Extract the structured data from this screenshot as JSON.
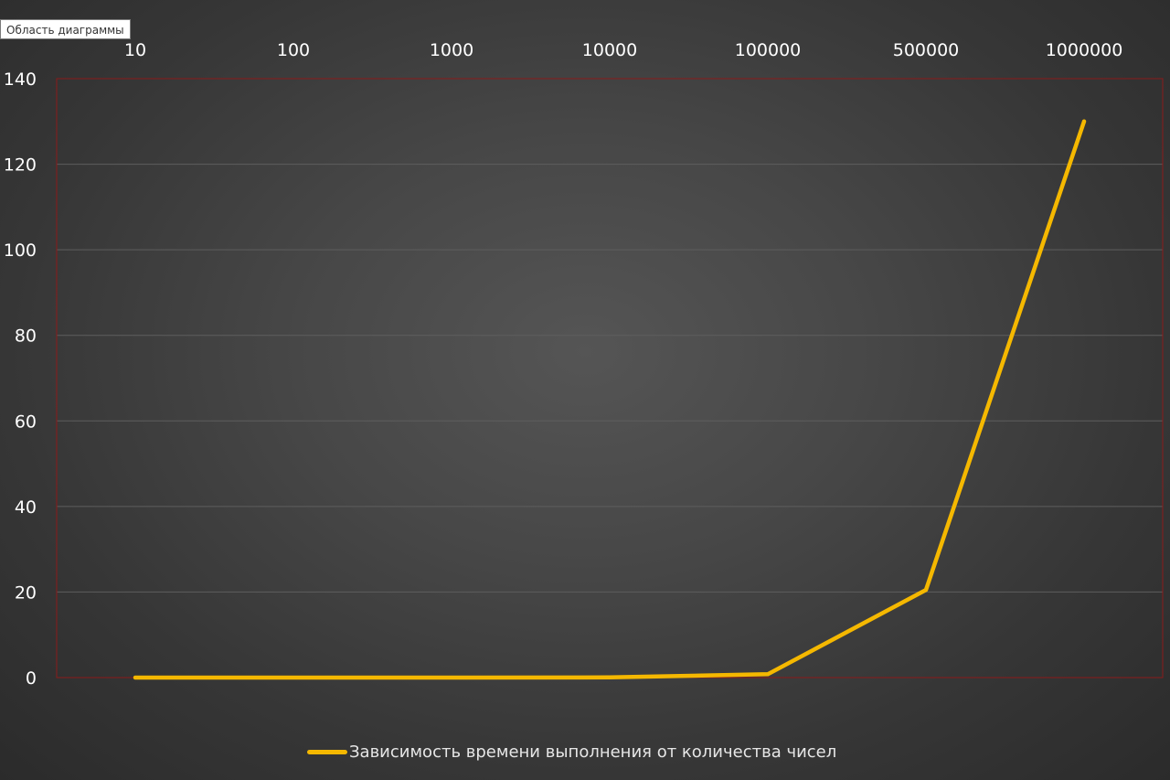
{
  "tooltip": {
    "text": "Область диаграммы"
  },
  "colors": {
    "series_line": "#f5b800",
    "plot_border": "#8b1a1a",
    "gridline": "#5e5e5e",
    "tick_text": "#ffffff"
  },
  "chart_data": {
    "type": "line",
    "categories": [
      "10",
      "100",
      "1000",
      "10000",
      "100000",
      "500000",
      "1000000"
    ],
    "series": [
      {
        "name": "Зависимость времени выполнения от количества чисел",
        "values": [
          0,
          0,
          0,
          0.05,
          0.8,
          20.5,
          130
        ]
      }
    ],
    "xaxis_position": "top",
    "ylim": [
      0,
      140
    ],
    "yticks": [
      0,
      20,
      40,
      60,
      80,
      100,
      120,
      140
    ],
    "grid": true,
    "legend_position": "bottom"
  }
}
